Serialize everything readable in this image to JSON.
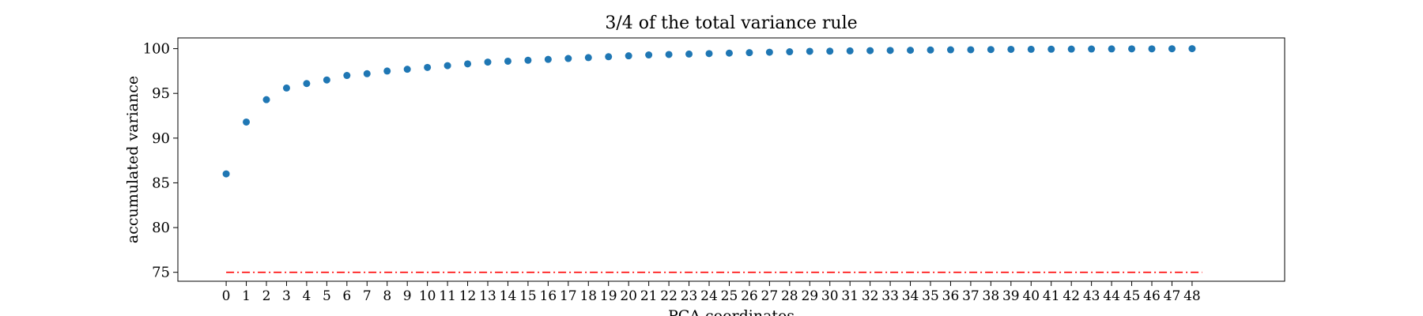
{
  "chart_data": {
    "type": "scatter",
    "title": "3/4 of the total variance rule",
    "xlabel": "PCA coordinates",
    "ylabel": "accumulated variance",
    "ylim": [
      74,
      101.2
    ],
    "xlim": [
      -2.4,
      52.6
    ],
    "yticks": [
      75,
      80,
      85,
      90,
      95,
      100
    ],
    "xticks": [
      0,
      1,
      2,
      3,
      4,
      5,
      6,
      7,
      8,
      9,
      10,
      11,
      12,
      13,
      14,
      15,
      16,
      17,
      18,
      19,
      20,
      21,
      22,
      23,
      24,
      25,
      26,
      27,
      28,
      29,
      30,
      31,
      32,
      33,
      34,
      35,
      36,
      37,
      38,
      39,
      40,
      41,
      42,
      43,
      44,
      45,
      46,
      47,
      48
    ],
    "grid": false,
    "series": [
      {
        "marker": "circle",
        "color": "#1f77b4",
        "x": [
          0,
          1,
          2,
          3,
          4,
          5,
          6,
          7,
          8,
          9,
          10,
          11,
          12,
          13,
          14,
          15,
          16,
          17,
          18,
          19,
          20,
          21,
          22,
          23,
          24,
          25,
          26,
          27,
          28,
          29,
          30,
          31,
          32,
          33,
          34,
          35,
          36,
          37,
          38,
          39,
          40,
          41,
          42,
          43,
          44,
          45,
          46,
          47,
          48
        ],
        "y": [
          86.0,
          91.8,
          94.3,
          95.6,
          96.1,
          96.5,
          97.0,
          97.2,
          97.5,
          97.7,
          97.9,
          98.1,
          98.3,
          98.5,
          98.6,
          98.7,
          98.8,
          98.9,
          99.0,
          99.1,
          99.2,
          99.3,
          99.35,
          99.4,
          99.45,
          99.5,
          99.55,
          99.6,
          99.65,
          99.7,
          99.72,
          99.75,
          99.78,
          99.8,
          99.82,
          99.85,
          99.87,
          99.88,
          99.9,
          99.92,
          99.93,
          99.94,
          99.95,
          99.96,
          99.97,
          99.98,
          99.98,
          99.99,
          100.0
        ]
      }
    ],
    "reference_line": {
      "y": 75,
      "x_from": 0,
      "x_to": 48.5,
      "color": "#ff0000",
      "style": "dash-dot"
    }
  }
}
